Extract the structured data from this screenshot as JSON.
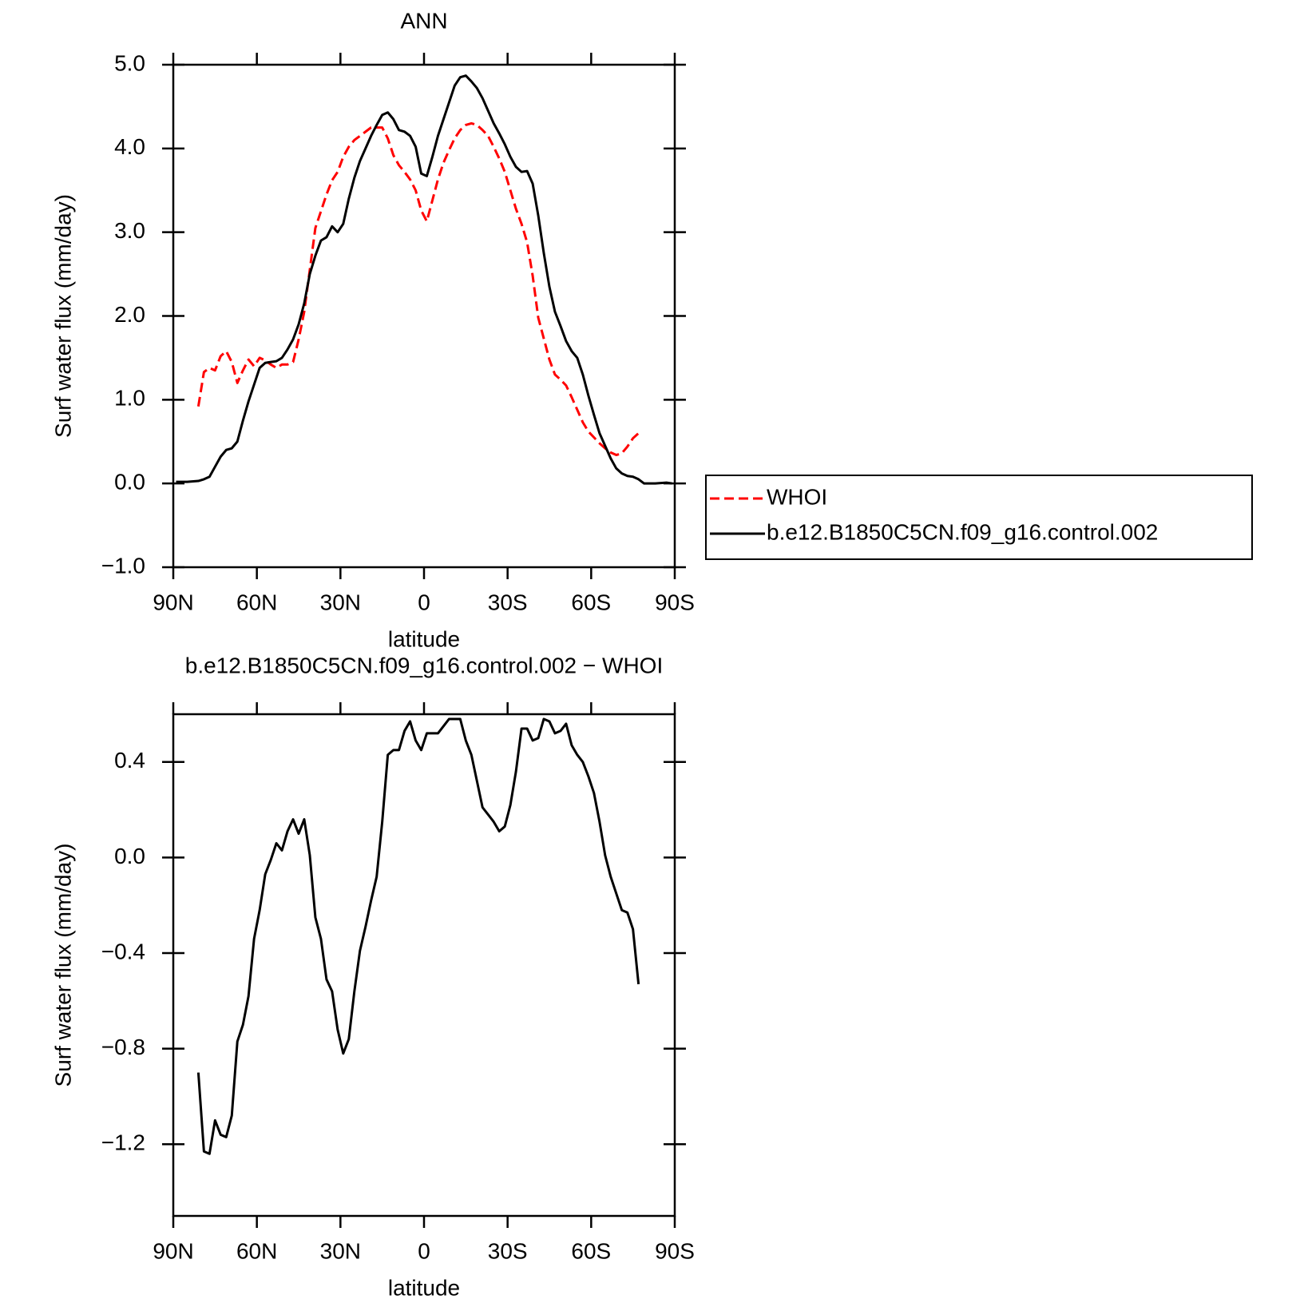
{
  "chart_data": [
    {
      "type": "line",
      "title": "ANN",
      "ylabel": "Surf water flux (mm/day)",
      "xlabel": "latitude",
      "x": [
        89,
        85,
        81,
        79,
        77,
        75,
        73,
        71,
        69,
        67,
        65,
        63,
        61,
        59,
        57,
        55,
        53,
        51,
        49,
        47,
        45,
        43,
        41,
        39,
        37,
        35,
        33,
        31,
        29,
        27,
        25,
        23,
        21,
        19,
        17,
        15,
        13,
        11,
        9,
        7,
        5,
        3,
        1,
        -1,
        -3,
        -5,
        -7,
        -9,
        -11,
        -13,
        -15,
        -17,
        -19,
        -21,
        -23,
        -25,
        -27,
        -29,
        -31,
        -33,
        -35,
        -37,
        -39,
        -41,
        -43,
        -45,
        -47,
        -49,
        -51,
        -53,
        -55,
        -57,
        -59,
        -61,
        -63,
        -65,
        -67,
        -69,
        -71,
        -73,
        -75,
        -77,
        -79,
        -83,
        -87,
        -89
      ],
      "series": [
        {
          "name": "WHOI",
          "color": "#ff0000",
          "dashed": true,
          "values": [
            null,
            null,
            0.92,
            1.33,
            1.38,
            1.35,
            1.52,
            1.58,
            1.45,
            1.2,
            1.35,
            1.48,
            1.4,
            1.5,
            1.47,
            1.42,
            1.38,
            1.42,
            1.42,
            1.45,
            1.72,
            2.05,
            2.55,
            3.05,
            3.25,
            3.45,
            3.62,
            3.72,
            3.9,
            4.02,
            4.1,
            4.15,
            4.2,
            4.25,
            4.25,
            4.25,
            4.12,
            3.92,
            3.8,
            3.72,
            3.63,
            3.5,
            3.26,
            3.13,
            3.38,
            3.63,
            3.83,
            3.98,
            4.12,
            4.22,
            4.28,
            4.3,
            4.28,
            4.22,
            4.15,
            4.02,
            3.88,
            3.72,
            3.5,
            3.28,
            3.1,
            2.88,
            2.48,
            1.98,
            1.73,
            1.48,
            1.3,
            1.24,
            1.17,
            1.03,
            0.88,
            0.73,
            0.62,
            0.55,
            0.48,
            0.42,
            0.37,
            0.34,
            0.36,
            0.44,
            0.54,
            0.6,
            null,
            null,
            null,
            null
          ]
        },
        {
          "name": "b.e12.B1850C5CN.f09_g16.control.002",
          "color": "#000000",
          "dashed": false,
          "values": [
            0.02,
            0.02,
            0.03,
            0.05,
            0.08,
            0.2,
            0.32,
            0.4,
            0.42,
            0.5,
            0.75,
            0.98,
            1.18,
            1.38,
            1.44,
            1.45,
            1.46,
            1.5,
            1.6,
            1.72,
            1.9,
            2.15,
            2.5,
            2.72,
            2.9,
            2.94,
            3.07,
            3.0,
            3.1,
            3.4,
            3.65,
            3.85,
            4.0,
            4.15,
            4.28,
            4.4,
            4.43,
            4.35,
            4.22,
            4.2,
            4.15,
            4.02,
            3.7,
            3.67,
            3.9,
            4.15,
            4.35,
            4.55,
            4.75,
            4.85,
            4.87,
            4.8,
            4.72,
            4.6,
            4.45,
            4.3,
            4.18,
            4.05,
            3.9,
            3.78,
            3.72,
            3.73,
            3.58,
            3.2,
            2.75,
            2.35,
            2.05,
            1.88,
            1.7,
            1.58,
            1.5,
            1.3,
            1.05,
            0.82,
            0.6,
            0.45,
            0.3,
            0.18,
            0.12,
            0.09,
            0.08,
            0.05,
            0.0,
            0.0,
            0.01,
            0.0
          ]
        }
      ],
      "xlim": [
        90,
        -90
      ],
      "xticks": [
        {
          "value": 90,
          "label": "90N"
        },
        {
          "value": 60,
          "label": "60N"
        },
        {
          "value": 30,
          "label": "30N"
        },
        0,
        {
          "value": -30,
          "label": "30S"
        },
        {
          "value": -60,
          "label": "60S"
        },
        {
          "value": -90,
          "label": "90S"
        }
      ],
      "ylim": [
        -1,
        5
      ],
      "yticks": [
        {
          "value": -1,
          "label": "−1.0"
        },
        {
          "value": 0,
          "label": "0.0"
        },
        {
          "value": 1,
          "label": "1.0"
        },
        {
          "value": 2,
          "label": "2.0"
        },
        {
          "value": 3,
          "label": "3.0"
        },
        {
          "value": 4,
          "label": "4.0"
        },
        {
          "value": 5,
          "label": "5.0"
        }
      ],
      "legend": "right"
    },
    {
      "type": "line",
      "title": "b.e12.B1850C5CN.f09_g16.control.002 − WHOI",
      "ylabel": "Surf water flux (mm/day)",
      "xlabel": "latitude",
      "x": [
        81,
        79,
        77,
        75,
        73,
        71,
        69,
        67,
        65,
        63,
        61,
        59,
        57,
        55,
        53,
        51,
        49,
        47,
        45,
        43,
        41,
        39,
        37,
        35,
        33,
        31,
        29,
        27,
        25,
        23,
        21,
        19,
        17,
        15,
        13,
        11,
        9,
        7,
        5,
        3,
        1,
        -1,
        -3,
        -5,
        -7,
        -9,
        -11,
        -13,
        -15,
        -17,
        -19,
        -21,
        -23,
        -25,
        -27,
        -29,
        -31,
        -33,
        -35,
        -37,
        -39,
        -41,
        -43,
        -45,
        -47,
        -49,
        -51,
        -53,
        -55,
        -57,
        -59,
        -61,
        -63,
        -65,
        -67,
        -69,
        -71,
        -73,
        -75,
        -77
      ],
      "series": [
        {
          "color": "#000000",
          "dashed": false,
          "values": [
            -0.9,
            -1.23,
            -1.24,
            -1.1,
            -1.16,
            -1.17,
            -1.08,
            -0.77,
            -0.7,
            -0.58,
            -0.34,
            -0.22,
            -0.07,
            -0.01,
            0.06,
            0.03,
            0.11,
            0.16,
            0.1,
            0.16,
            0.01,
            -0.25,
            -0.34,
            -0.51,
            -0.56,
            -0.72,
            -0.82,
            -0.76,
            -0.56,
            -0.39,
            -0.29,
            -0.18,
            -0.08,
            0.15,
            0.43,
            0.45,
            0.45,
            0.53,
            0.57,
            0.49,
            0.45,
            0.52,
            0.52,
            0.52,
            0.55,
            0.58,
            0.58,
            0.58,
            0.49,
            0.43,
            0.32,
            0.21,
            0.18,
            0.15,
            0.11,
            0.13,
            0.22,
            0.36,
            0.54,
            0.54,
            0.49,
            0.5,
            0.58,
            0.57,
            0.52,
            0.53,
            0.56,
            0.47,
            0.43,
            0.4,
            0.34,
            0.27,
            0.15,
            0.01,
            -0.08,
            -0.15,
            -0.22,
            -0.23,
            -0.3,
            -0.53
          ]
        }
      ],
      "xlim": [
        90,
        -90
      ],
      "xticks": [
        {
          "value": 90,
          "label": "90N"
        },
        {
          "value": 60,
          "label": "60N"
        },
        {
          "value": 30,
          "label": "30N"
        },
        0,
        {
          "value": -30,
          "label": "30S"
        },
        {
          "value": -60,
          "label": "60S"
        },
        {
          "value": -90,
          "label": "90S"
        }
      ],
      "ylim": [
        -1.5,
        0.6
      ],
      "yticks": [
        {
          "value": -1.2,
          "label": "−1.2"
        },
        {
          "value": -0.8,
          "label": "−0.8"
        },
        {
          "value": -0.4,
          "label": "−0.4"
        },
        {
          "value": 0,
          "label": "0.0"
        },
        0.4
      ]
    }
  ]
}
